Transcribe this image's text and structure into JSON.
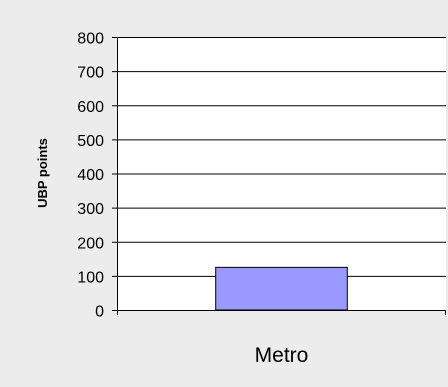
{
  "chart_data": {
    "type": "bar",
    "title": "",
    "xlabel": "",
    "ylabel": "UBP points",
    "categories": [
      "Metro"
    ],
    "values": [
      125
    ],
    "ylim": [
      0,
      800
    ],
    "y_ticks": [
      0,
      100,
      200,
      300,
      400,
      500,
      600,
      700,
      800
    ],
    "y_tick_labels": [
      "0",
      "100",
      "200",
      "300",
      "400",
      "500",
      "600",
      "700",
      "800"
    ],
    "grid": true,
    "legend": "none",
    "colors": {
      "background": "#ececec",
      "plot_area": "#ffffff",
      "bar_fill": "#9999ff",
      "bar_stroke": "#000000",
      "grid": "#000000",
      "axis": "#000000"
    }
  }
}
